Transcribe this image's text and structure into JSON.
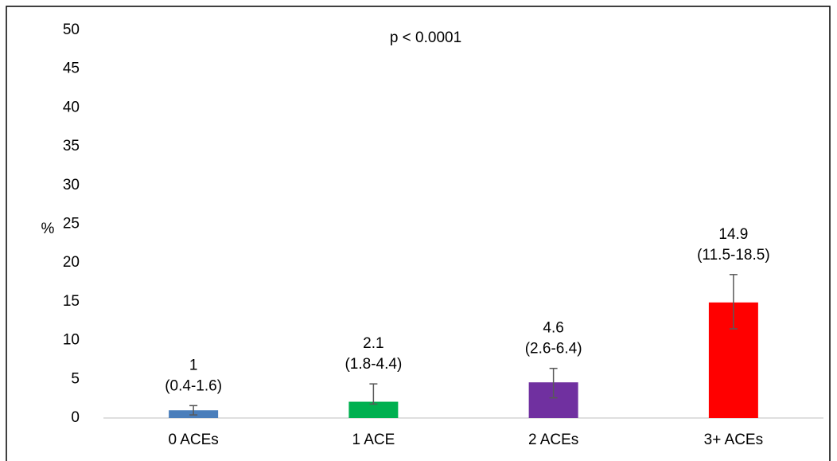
{
  "chart_data": {
    "type": "bar",
    "annotation": "p < 0.0001",
    "y_label": "%",
    "categories": [
      "0 ACEs",
      "1 ACE",
      "2 ACEs",
      "3+ ACEs"
    ],
    "values": [
      1,
      2.1,
      4.6,
      14.9
    ],
    "ci_low": [
      0.4,
      1.8,
      2.6,
      11.5
    ],
    "ci_high": [
      1.6,
      4.4,
      6.4,
      18.5
    ],
    "ci_labels": [
      "(0.4-1.6)",
      "(1.8-4.4)",
      "(2.6-6.4)",
      "(11.5-18.5)"
    ],
    "colors": [
      "#4a7ebb",
      "#00b050",
      "#7030a0",
      "#ff0000"
    ],
    "ylim": [
      0,
      50
    ],
    "yticks": [
      0,
      5,
      10,
      15,
      20,
      25,
      30,
      35,
      40,
      45,
      50
    ]
  }
}
